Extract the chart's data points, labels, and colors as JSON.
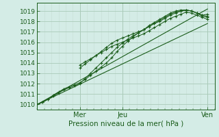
{
  "xlabel": "Pression niveau de la mer( hPa )",
  "bg_color": "#d4ece6",
  "grid_major_color": "#aacab8",
  "grid_minor_color": "#c4ddd4",
  "line_color": "#1a5c1a",
  "ylim": [
    1009.5,
    1019.8
  ],
  "yticks": [
    1010,
    1011,
    1012,
    1013,
    1014,
    1015,
    1016,
    1017,
    1018,
    1019
  ],
  "xlim": [
    0,
    100
  ],
  "xtick_positions": [
    24,
    48,
    96
  ],
  "xtick_labels": [
    "Mer",
    "Jeu",
    "Ven"
  ],
  "minor_x_step": 4,
  "series_dotted": [
    {
      "x": [
        0,
        3,
        6,
        9,
        12,
        15,
        18,
        21,
        24,
        27,
        30,
        33,
        36,
        39,
        42,
        45,
        48,
        51,
        54,
        57,
        60,
        63,
        66,
        69,
        72,
        75,
        78,
        81,
        84,
        87,
        90,
        93,
        96
      ],
      "y": [
        1010.0,
        1010.2,
        1010.5,
        1010.9,
        1011.2,
        1011.5,
        1011.7,
        1011.9,
        1012.1,
        1012.4,
        1012.8,
        1013.2,
        1013.6,
        1014.0,
        1014.5,
        1015.1,
        1015.6,
        1016.1,
        1016.5,
        1016.9,
        1017.2,
        1017.6,
        1017.9,
        1018.2,
        1018.5,
        1018.8,
        1019.0,
        1019.1,
        1019.1,
        1019.0,
        1018.8,
        1018.6,
        1018.5
      ]
    },
    {
      "x": [
        0,
        3,
        6,
        9,
        12,
        15,
        18,
        21,
        24,
        27,
        30,
        33,
        36,
        39,
        42,
        45,
        48,
        51,
        54,
        57,
        60,
        63,
        66,
        69,
        72,
        75,
        78,
        81,
        84,
        87,
        90,
        93,
        96
      ],
      "y": [
        1010.0,
        1010.2,
        1010.5,
        1010.8,
        1011.1,
        1011.4,
        1011.6,
        1011.8,
        1012.0,
        1012.5,
        1013.0,
        1013.5,
        1014.0,
        1014.5,
        1015.0,
        1015.5,
        1015.9,
        1016.3,
        1016.6,
        1016.9,
        1017.2,
        1017.5,
        1017.8,
        1018.1,
        1018.4,
        1018.7,
        1018.9,
        1019.0,
        1019.1,
        1019.0,
        1018.8,
        1018.6,
        1018.7
      ]
    },
    {
      "x": [
        24,
        27,
        30,
        33,
        36,
        39,
        42,
        45,
        48,
        51,
        54,
        57,
        60,
        63,
        66,
        69,
        72,
        75,
        78,
        81,
        84,
        87,
        90,
        93,
        96
      ],
      "y": [
        1013.5,
        1013.9,
        1014.3,
        1014.7,
        1015.1,
        1015.5,
        1015.9,
        1016.2,
        1016.4,
        1016.6,
        1016.8,
        1017.0,
        1017.2,
        1017.5,
        1017.8,
        1018.0,
        1018.3,
        1018.6,
        1018.8,
        1019.0,
        1019.1,
        1019.0,
        1018.8,
        1018.5,
        1018.4
      ]
    },
    {
      "x": [
        24,
        27,
        30,
        33,
        36,
        39,
        42,
        45,
        48,
        51,
        54,
        57,
        60,
        63,
        66,
        69,
        72,
        75,
        78,
        81,
        84,
        87,
        90,
        93,
        96
      ],
      "y": [
        1013.8,
        1014.1,
        1014.4,
        1014.7,
        1015.0,
        1015.3,
        1015.6,
        1015.8,
        1016.0,
        1016.2,
        1016.4,
        1016.6,
        1016.8,
        1017.1,
        1017.4,
        1017.7,
        1018.0,
        1018.3,
        1018.5,
        1018.7,
        1018.9,
        1018.8,
        1018.6,
        1018.4,
        1018.2
      ]
    }
  ],
  "series_straight": [
    {
      "x": [
        0,
        96
      ],
      "y": [
        1010.0,
        1019.2
      ]
    },
    {
      "x": [
        0,
        96
      ],
      "y": [
        1010.0,
        1017.8
      ]
    }
  ]
}
